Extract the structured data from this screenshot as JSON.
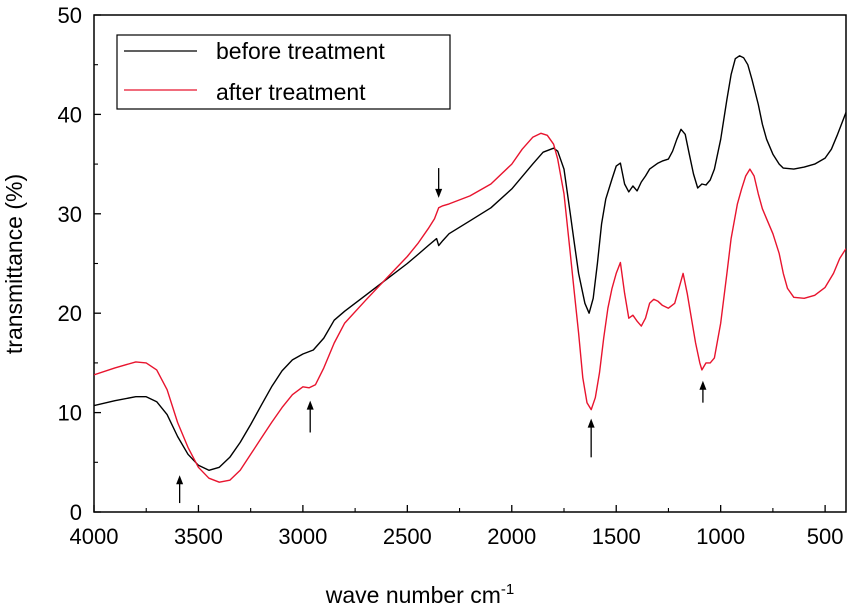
{
  "chart_data": {
    "type": "line",
    "title": "",
    "xlabel": "wave number cm",
    "xlabel_superscript": "-1",
    "ylabel": "transmittance (%)",
    "xlim": [
      4000,
      400
    ],
    "ylim": [
      0,
      50
    ],
    "x_reversed": true,
    "x_ticks": [
      4000,
      3500,
      3000,
      2500,
      2000,
      1500,
      1000,
      500
    ],
    "x_tick_labels": [
      "4000",
      "3500",
      "3000",
      "2500",
      "2000",
      "1500",
      "1000",
      "500"
    ],
    "y_ticks": [
      0,
      10,
      20,
      30,
      40,
      50
    ],
    "y_tick_labels": [
      "0",
      "10",
      "20",
      "30",
      "40",
      "50"
    ],
    "grid": false,
    "legend": "top-left",
    "series": [
      {
        "name": "before treatment",
        "color": "#000000",
        "points": [
          [
            4000,
            10.7
          ],
          [
            3900,
            11.2
          ],
          [
            3800,
            11.6
          ],
          [
            3750,
            11.6
          ],
          [
            3700,
            11.1
          ],
          [
            3650,
            9.8
          ],
          [
            3600,
            7.6
          ],
          [
            3550,
            5.8
          ],
          [
            3500,
            4.7
          ],
          [
            3450,
            4.2
          ],
          [
            3400,
            4.5
          ],
          [
            3350,
            5.5
          ],
          [
            3300,
            7.0
          ],
          [
            3250,
            8.8
          ],
          [
            3200,
            10.7
          ],
          [
            3150,
            12.6
          ],
          [
            3100,
            14.2
          ],
          [
            3050,
            15.3
          ],
          [
            3000,
            15.9
          ],
          [
            2950,
            16.3
          ],
          [
            2900,
            17.5
          ],
          [
            2850,
            19.3
          ],
          [
            2800,
            20.2
          ],
          [
            2700,
            21.8
          ],
          [
            2600,
            23.4
          ],
          [
            2500,
            25.0
          ],
          [
            2450,
            25.9
          ],
          [
            2400,
            26.8
          ],
          [
            2360,
            27.5
          ],
          [
            2350,
            26.8
          ],
          [
            2330,
            27.3
          ],
          [
            2300,
            28.0
          ],
          [
            2200,
            29.3
          ],
          [
            2100,
            30.6
          ],
          [
            2000,
            32.5
          ],
          [
            1900,
            35.0
          ],
          [
            1850,
            36.2
          ],
          [
            1800,
            36.6
          ],
          [
            1780,
            36.3
          ],
          [
            1750,
            34.5
          ],
          [
            1720,
            30.0
          ],
          [
            1700,
            27.0
          ],
          [
            1680,
            24.0
          ],
          [
            1650,
            21.0
          ],
          [
            1630,
            20.0
          ],
          [
            1610,
            21.5
          ],
          [
            1590,
            25.0
          ],
          [
            1570,
            29.0
          ],
          [
            1550,
            31.5
          ],
          [
            1520,
            33.5
          ],
          [
            1500,
            34.8
          ],
          [
            1480,
            35.1
          ],
          [
            1460,
            33.0
          ],
          [
            1440,
            32.2
          ],
          [
            1420,
            32.8
          ],
          [
            1400,
            32.3
          ],
          [
            1380,
            33.2
          ],
          [
            1360,
            33.8
          ],
          [
            1340,
            34.5
          ],
          [
            1320,
            34.8
          ],
          [
            1300,
            35.1
          ],
          [
            1280,
            35.3
          ],
          [
            1250,
            35.5
          ],
          [
            1230,
            36.3
          ],
          [
            1210,
            37.5
          ],
          [
            1190,
            38.5
          ],
          [
            1170,
            38.0
          ],
          [
            1150,
            36.0
          ],
          [
            1130,
            34.0
          ],
          [
            1110,
            32.6
          ],
          [
            1090,
            33.0
          ],
          [
            1070,
            32.9
          ],
          [
            1050,
            33.4
          ],
          [
            1030,
            34.5
          ],
          [
            1000,
            37.5
          ],
          [
            970,
            41.5
          ],
          [
            950,
            44.0
          ],
          [
            930,
            45.6
          ],
          [
            910,
            45.9
          ],
          [
            890,
            45.7
          ],
          [
            870,
            45.0
          ],
          [
            850,
            43.5
          ],
          [
            820,
            41.0
          ],
          [
            800,
            39.0
          ],
          [
            780,
            37.5
          ],
          [
            750,
            36.0
          ],
          [
            720,
            35.0
          ],
          [
            700,
            34.6
          ],
          [
            650,
            34.5
          ],
          [
            600,
            34.7
          ],
          [
            550,
            35.0
          ],
          [
            500,
            35.6
          ],
          [
            470,
            36.5
          ],
          [
            440,
            38.0
          ],
          [
            400,
            40.2
          ]
        ]
      },
      {
        "name": "after treatment",
        "color": "#e8142e",
        "points": [
          [
            4000,
            13.8
          ],
          [
            3900,
            14.5
          ],
          [
            3800,
            15.1
          ],
          [
            3750,
            15.0
          ],
          [
            3700,
            14.3
          ],
          [
            3650,
            12.3
          ],
          [
            3600,
            9.0
          ],
          [
            3550,
            6.5
          ],
          [
            3500,
            4.5
          ],
          [
            3450,
            3.4
          ],
          [
            3400,
            3.0
          ],
          [
            3350,
            3.2
          ],
          [
            3300,
            4.2
          ],
          [
            3250,
            5.8
          ],
          [
            3200,
            7.4
          ],
          [
            3150,
            9.0
          ],
          [
            3100,
            10.5
          ],
          [
            3050,
            11.8
          ],
          [
            3000,
            12.6
          ],
          [
            2970,
            12.5
          ],
          [
            2940,
            12.8
          ],
          [
            2900,
            14.5
          ],
          [
            2850,
            17.0
          ],
          [
            2800,
            19.0
          ],
          [
            2700,
            21.3
          ],
          [
            2600,
            23.5
          ],
          [
            2500,
            25.7
          ],
          [
            2450,
            27.0
          ],
          [
            2400,
            28.5
          ],
          [
            2370,
            29.5
          ],
          [
            2350,
            30.6
          ],
          [
            2330,
            30.8
          ],
          [
            2300,
            31.0
          ],
          [
            2200,
            31.8
          ],
          [
            2100,
            33.0
          ],
          [
            2000,
            35.0
          ],
          [
            1950,
            36.5
          ],
          [
            1900,
            37.7
          ],
          [
            1860,
            38.1
          ],
          [
            1830,
            37.9
          ],
          [
            1800,
            37.0
          ],
          [
            1780,
            35.5
          ],
          [
            1750,
            32.0
          ],
          [
            1720,
            26.0
          ],
          [
            1700,
            22.0
          ],
          [
            1680,
            18.0
          ],
          [
            1660,
            13.5
          ],
          [
            1640,
            11.0
          ],
          [
            1620,
            10.3
          ],
          [
            1600,
            11.5
          ],
          [
            1580,
            14.0
          ],
          [
            1560,
            17.5
          ],
          [
            1540,
            20.5
          ],
          [
            1520,
            22.5
          ],
          [
            1500,
            24.0
          ],
          [
            1480,
            25.1
          ],
          [
            1460,
            22.0
          ],
          [
            1440,
            19.5
          ],
          [
            1420,
            19.8
          ],
          [
            1400,
            19.2
          ],
          [
            1380,
            18.7
          ],
          [
            1360,
            19.5
          ],
          [
            1340,
            21.0
          ],
          [
            1320,
            21.4
          ],
          [
            1300,
            21.2
          ],
          [
            1280,
            20.8
          ],
          [
            1250,
            20.5
          ],
          [
            1220,
            21.0
          ],
          [
            1200,
            22.5
          ],
          [
            1180,
            24.0
          ],
          [
            1160,
            22.0
          ],
          [
            1140,
            19.5
          ],
          [
            1120,
            17.0
          ],
          [
            1100,
            15.0
          ],
          [
            1090,
            14.3
          ],
          [
            1070,
            15.0
          ],
          [
            1050,
            15.0
          ],
          [
            1030,
            15.5
          ],
          [
            1000,
            19.0
          ],
          [
            970,
            24.0
          ],
          [
            950,
            27.5
          ],
          [
            920,
            31.0
          ],
          [
            900,
            32.5
          ],
          [
            880,
            33.8
          ],
          [
            860,
            34.5
          ],
          [
            840,
            33.8
          ],
          [
            820,
            32.0
          ],
          [
            800,
            30.5
          ],
          [
            780,
            29.5
          ],
          [
            750,
            28.0
          ],
          [
            720,
            26.0
          ],
          [
            700,
            24.0
          ],
          [
            680,
            22.5
          ],
          [
            650,
            21.6
          ],
          [
            600,
            21.5
          ],
          [
            550,
            21.8
          ],
          [
            500,
            22.6
          ],
          [
            460,
            24.0
          ],
          [
            430,
            25.5
          ],
          [
            400,
            26.5
          ]
        ]
      }
    ],
    "annotations": [
      {
        "type": "arrow",
        "direction": "up",
        "x": 3590,
        "y_tip": 3.7,
        "y_tail": 0.9
      },
      {
        "type": "arrow",
        "direction": "up",
        "x": 2965,
        "y_tip": 11.2,
        "y_tail": 8.0
      },
      {
        "type": "arrow",
        "direction": "down",
        "x": 2350,
        "y_tip": 31.6,
        "y_tail": 34.6
      },
      {
        "type": "arrow",
        "direction": "up",
        "x": 1620,
        "y_tip": 9.4,
        "y_tail": 5.5
      },
      {
        "type": "arrow",
        "direction": "up",
        "x": 1085,
        "y_tip": 13.2,
        "y_tail": 11.0
      }
    ]
  }
}
